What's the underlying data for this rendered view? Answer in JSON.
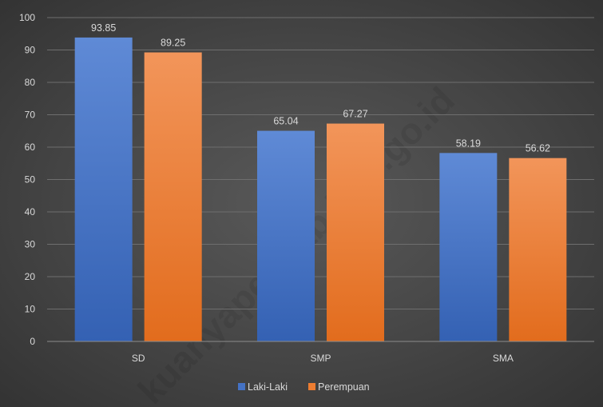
{
  "watermark": "kuanyapenkab.bps.go.id",
  "colors": {
    "laki_laki": "#4472c4",
    "perempuan": "#ed7d31",
    "gridline": "#6e6e6e",
    "text": "#d9d9d9"
  },
  "chart_data": {
    "type": "bar",
    "title": "",
    "xlabel": "",
    "ylabel": "",
    "categories": [
      "SD",
      "SMP",
      "SMA"
    ],
    "series": [
      {
        "name": "Laki-Laki",
        "values": [
          93.85,
          65.04,
          58.19
        ],
        "value_labels": [
          "93.85",
          "65.04",
          "58.19"
        ],
        "color": "#4472c4"
      },
      {
        "name": "Perempuan",
        "values": [
          89.25,
          67.27,
          56.62
        ],
        "value_labels": [
          "89.25",
          "67.27",
          "56.62"
        ],
        "color": "#ed7d31"
      }
    ],
    "ylim": [
      0,
      100
    ],
    "yticks": [
      0,
      10,
      20,
      30,
      40,
      50,
      60,
      70,
      80,
      90,
      100
    ],
    "grid": true,
    "legend": "bottom"
  }
}
